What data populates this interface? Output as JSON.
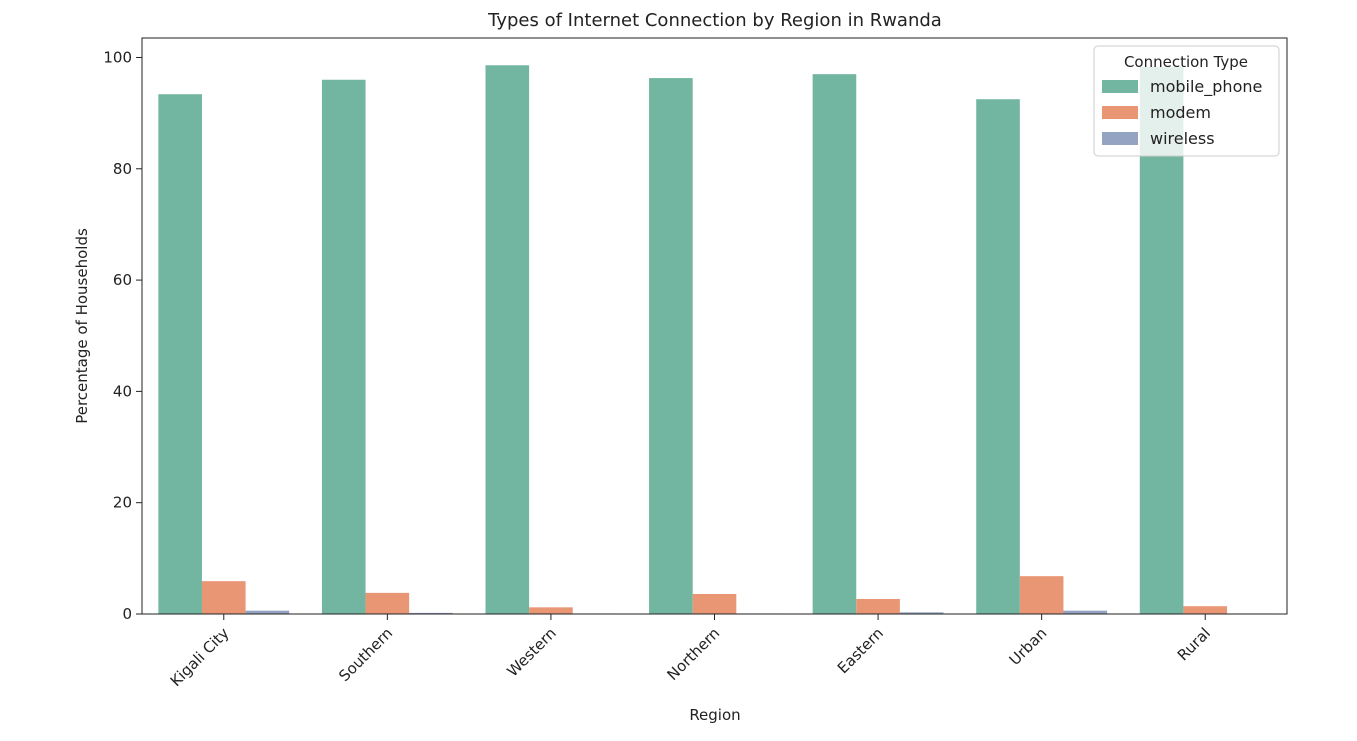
{
  "chart_data": {
    "type": "bar",
    "title": "Types of Internet Connection by Region in Rwanda",
    "xlabel": "Region",
    "ylabel": "Percentage of Households",
    "categories": [
      "Kigali City",
      "Southern",
      "Western",
      "Northern",
      "Eastern",
      "Urban",
      "Rural"
    ],
    "series": [
      {
        "name": "mobile_phone",
        "color": "#72b6a1",
        "values": [
          93.4,
          96.0,
          98.6,
          96.3,
          97.0,
          92.5,
          98.3
        ]
      },
      {
        "name": "modem",
        "color": "#e99675",
        "values": [
          5.9,
          3.8,
          1.2,
          3.6,
          2.7,
          6.8,
          1.4
        ]
      },
      {
        "name": "wireless",
        "color": "#95a3c3",
        "values": [
          0.6,
          0.2,
          0.1,
          0.1,
          0.3,
          0.6,
          0.1
        ]
      }
    ],
    "ylim": [
      0,
      103.5
    ],
    "yticks": [
      0,
      20,
      40,
      60,
      80,
      100
    ],
    "grid": false,
    "legend": {
      "title": "Connection Type",
      "placement": "upper-right"
    }
  }
}
